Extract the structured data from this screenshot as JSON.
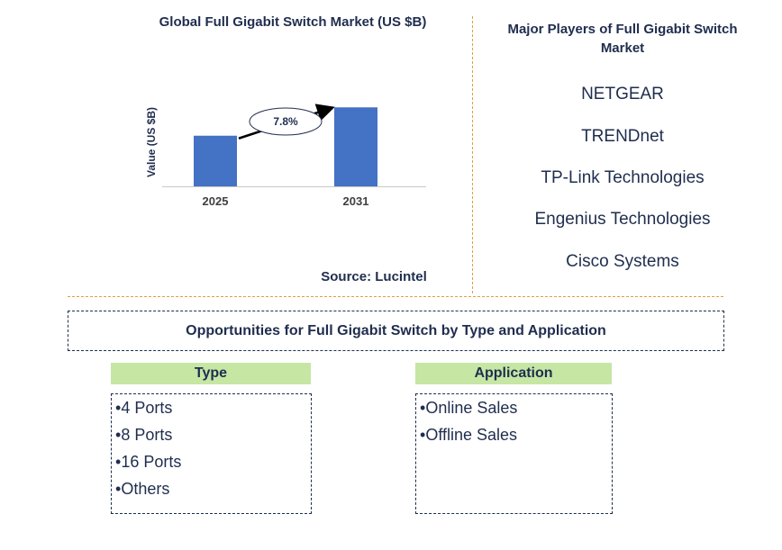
{
  "chart_data": {
    "type": "bar",
    "title": "Global Full Gigabit Switch Market (US $B)",
    "ylabel": "Value (US $B)",
    "xlabel": "",
    "categories": [
      "2025",
      "2031"
    ],
    "values": [
      1.0,
      1.56
    ],
    "ylim": [
      0,
      1.6
    ],
    "annotation": "7.8%",
    "bar_color": "#4472c4",
    "grid": false
  },
  "source": "Source: Lucintel",
  "players": {
    "title": "Major Players of Full Gigabit Switch Market",
    "items": [
      "NETGEAR",
      "TRENDnet",
      "TP-Link Technologies",
      "Engenius Technologies",
      "Cisco Systems"
    ]
  },
  "opportunities": {
    "title": "Opportunities for Full Gigabit Switch by Type and Application",
    "type": {
      "heading": "Type",
      "items": [
        "4 Ports",
        "8 Ports",
        "16 Ports",
        "Others"
      ]
    },
    "application": {
      "heading": "Application",
      "items": [
        "Online Sales",
        "Offline Sales"
      ]
    }
  }
}
